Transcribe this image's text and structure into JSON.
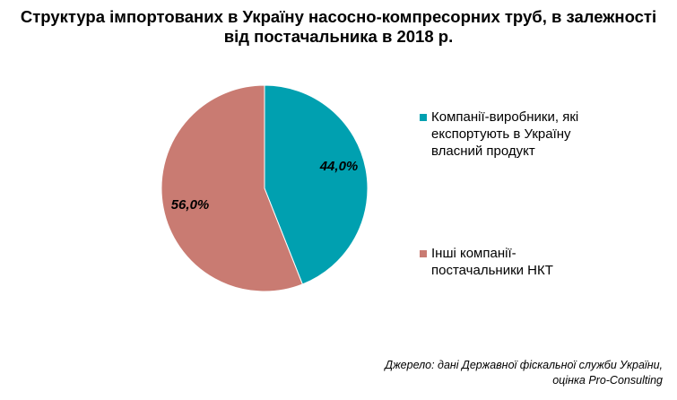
{
  "chart_data": {
    "type": "pie",
    "title_lines": [
      "Структура імпортованих в Україну насосно-компресорних труб, в залежності",
      "від постачальника в 2018 р."
    ],
    "slices": [
      {
        "label": "Компанії-виробники, які експортують в Україну власний продукт",
        "value": 44.0,
        "data_label": "44,0%",
        "color": "#00A0B0"
      },
      {
        "label": "Інші компанії-постачальники НКТ",
        "value": 56.0,
        "data_label": "56,0%",
        "color": "#C97B72"
      }
    ],
    "legend_position": "right"
  },
  "source_lines": [
    "Джерело: дані Державної фіскальної служби України,",
    "оцінка Pro-Consulting"
  ]
}
